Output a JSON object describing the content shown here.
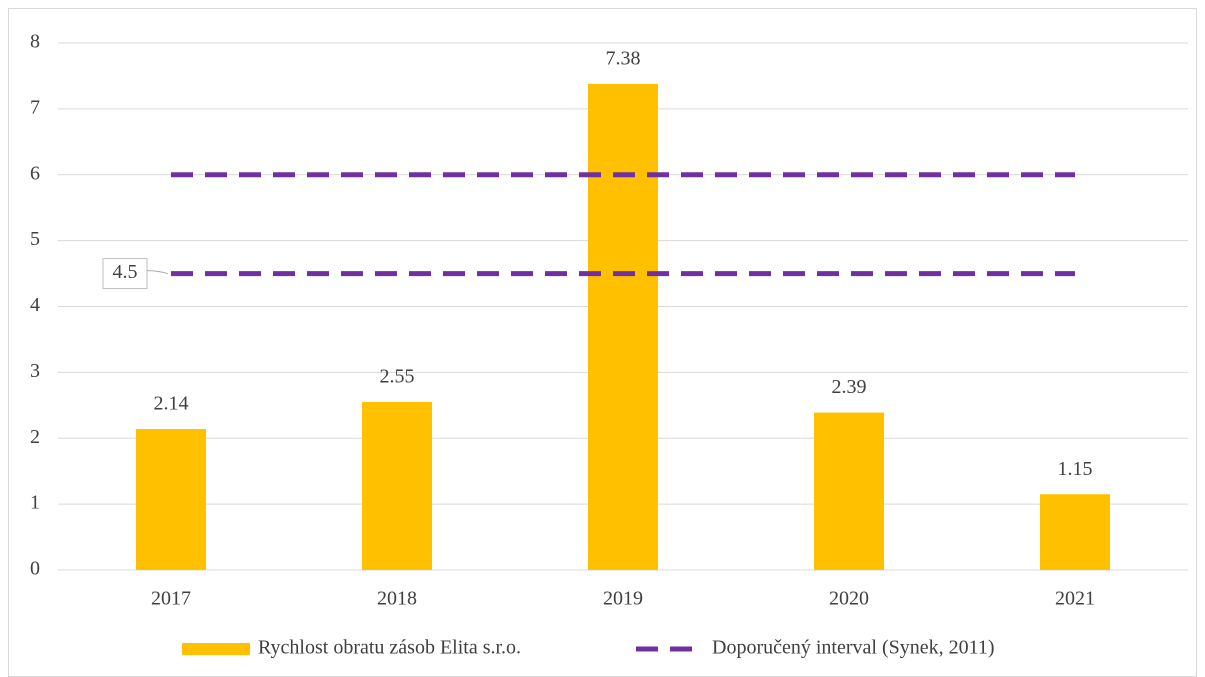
{
  "chart_data": {
    "type": "bar",
    "categories": [
      "2017",
      "2018",
      "2019",
      "2020",
      "2021"
    ],
    "series": [
      {
        "name": "Rychlost obratu zásob Elita s.r.o.",
        "type": "bar",
        "color": "#ffc000",
        "values": [
          2.14,
          2.55,
          7.38,
          2.39,
          1.15
        ]
      },
      {
        "name": "Doporučený interval (Synek, 2011)",
        "type": "line",
        "color": "#7030a0",
        "upper": [
          6,
          6,
          6,
          6,
          6
        ],
        "lower": [
          4.5,
          4.5,
          4.5,
          4.5,
          4.5
        ]
      }
    ],
    "ylim": [
      0,
      8
    ],
    "yticks": [
      0,
      1,
      2,
      3,
      4,
      5,
      6,
      7,
      8
    ],
    "grid": true,
    "legend": "bottom"
  }
}
